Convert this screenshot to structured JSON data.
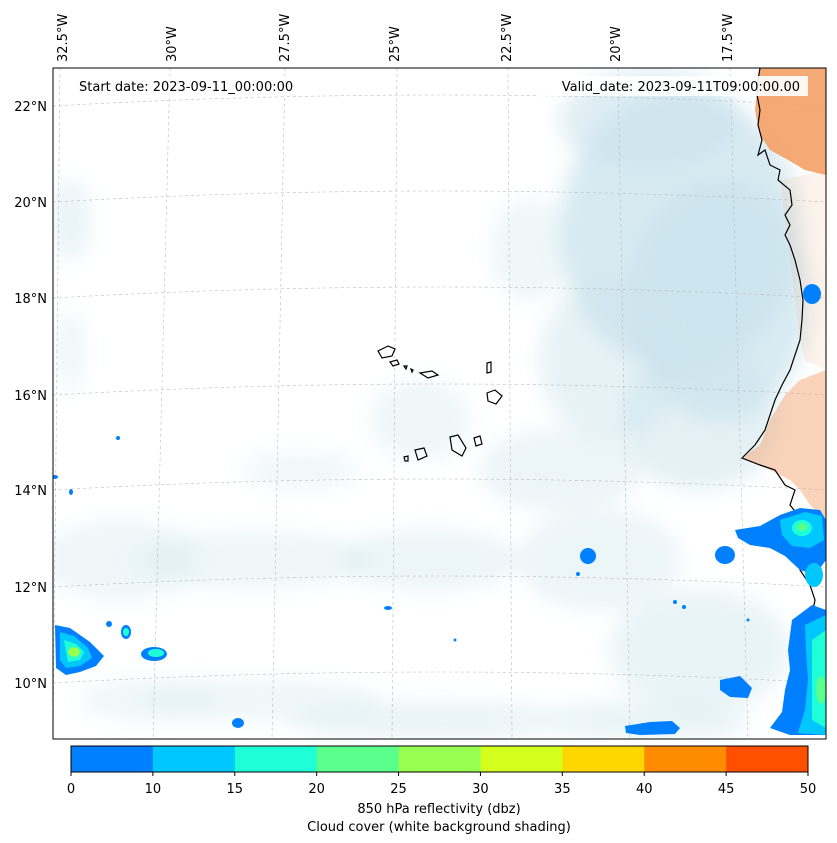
{
  "map": {
    "start_label": "Start date: 2023-09-11_00:00:00",
    "valid_label": "Valid_date: 2023-09-11T09:00:00.00",
    "lon_labels": [
      "32.5°W",
      "30°W",
      "27.5°W",
      "25°W",
      "22.5°W",
      "20°W",
      "17.5°W"
    ],
    "lat_labels": [
      "22°N",
      "20°N",
      "18°N",
      "16°N",
      "14°N",
      "12°N",
      "10°N"
    ],
    "land_color": "#f4a066",
    "cloud_color": "#c9e3ec"
  },
  "colorbar": {
    "ticks": [
      "0",
      "10",
      "15",
      "20",
      "25",
      "30",
      "35",
      "40",
      "45",
      "50"
    ],
    "colors": [
      "#0080ff",
      "#00c8ff",
      "#1effd8",
      "#5aff8c",
      "#96ff50",
      "#d2ff1e",
      "#ffd700",
      "#ff8c00",
      "#ff5000"
    ],
    "label": "850 hPa reflectivity (dbz)",
    "sublabel": "Cloud cover (white background shading)"
  }
}
